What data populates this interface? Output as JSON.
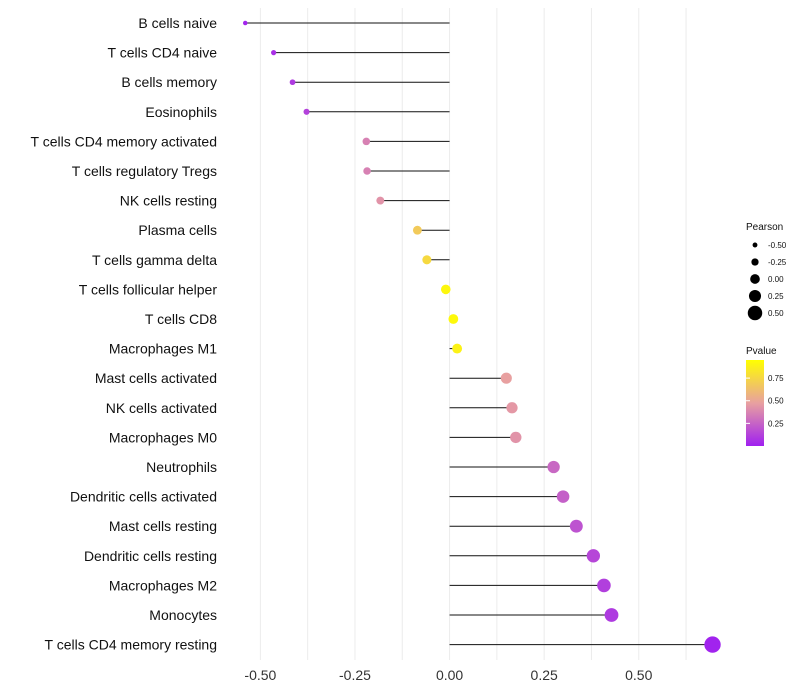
{
  "chart_data": {
    "type": "lollipop",
    "x": [
      {
        "label": "B cells naive",
        "value": -0.54,
        "pvalue": 0.02
      },
      {
        "label": "T cells CD4 naive",
        "value": -0.465,
        "pvalue": 0.06
      },
      {
        "label": "B cells memory",
        "value": -0.415,
        "pvalue": 0.1
      },
      {
        "label": "Eosinophils",
        "value": -0.378,
        "pvalue": 0.13
      },
      {
        "label": "T cells CD4 memory activated",
        "value": -0.22,
        "pvalue": 0.38
      },
      {
        "label": "T cells regulatory  Tregs",
        "value": -0.218,
        "pvalue": 0.38
      },
      {
        "label": "NK cells resting",
        "value": -0.183,
        "pvalue": 0.45
      },
      {
        "label": "Plasma cells",
        "value": -0.085,
        "pvalue": 0.72
      },
      {
        "label": "T cells gamma delta",
        "value": -0.06,
        "pvalue": 0.8
      },
      {
        "label": "T cells follicular helper",
        "value": -0.01,
        "pvalue": 0.96
      },
      {
        "label": "T cells CD8",
        "value": 0.01,
        "pvalue": 0.97
      },
      {
        "label": "Macrophages M1",
        "value": 0.02,
        "pvalue": 0.93
      },
      {
        "label": "Mast cells activated",
        "value": 0.15,
        "pvalue": 0.5
      },
      {
        "label": "NK cells activated",
        "value": 0.165,
        "pvalue": 0.47
      },
      {
        "label": "Macrophages M0",
        "value": 0.175,
        "pvalue": 0.45
      },
      {
        "label": "Neutrophils",
        "value": 0.275,
        "pvalue": 0.28
      },
      {
        "label": "Dendritic cells activated",
        "value": 0.3,
        "pvalue": 0.25
      },
      {
        "label": "Mast cells resting",
        "value": 0.335,
        "pvalue": 0.2
      },
      {
        "label": "Dendritic cells resting",
        "value": 0.38,
        "pvalue": 0.15
      },
      {
        "label": "Macrophages M2",
        "value": 0.408,
        "pvalue": 0.12
      },
      {
        "label": "Monocytes",
        "value": 0.428,
        "pvalue": 0.1
      },
      {
        "label": "T cells CD4 memory resting",
        "value": 0.695,
        "pvalue": 0.01
      }
    ],
    "xlim": [
      -0.575,
      0.72
    ],
    "xticks": [
      "-0.50",
      "-0.25",
      "0.00",
      "0.25",
      "0.50"
    ],
    "xtick_values": [
      -0.5,
      -0.25,
      0,
      0.25,
      0.5
    ],
    "xlabel": "",
    "ylabel": "",
    "grid": true,
    "legend": {
      "size": {
        "title": "Pearson",
        "labels": [
          "-0.50",
          "-0.25",
          "0.00",
          "0.25",
          "0.50"
        ],
        "values": [
          -0.5,
          -0.25,
          0,
          0.25,
          0.5
        ]
      },
      "color": {
        "title": "Pvalue",
        "labels": [
          "0.75",
          "0.50",
          "0.25"
        ],
        "values": [
          0.75,
          0.5,
          0.25
        ],
        "low_color": "#a020f0",
        "mid_color": "#e8a0a0",
        "high_color": "#ffff00"
      },
      "placement": "right"
    }
  }
}
